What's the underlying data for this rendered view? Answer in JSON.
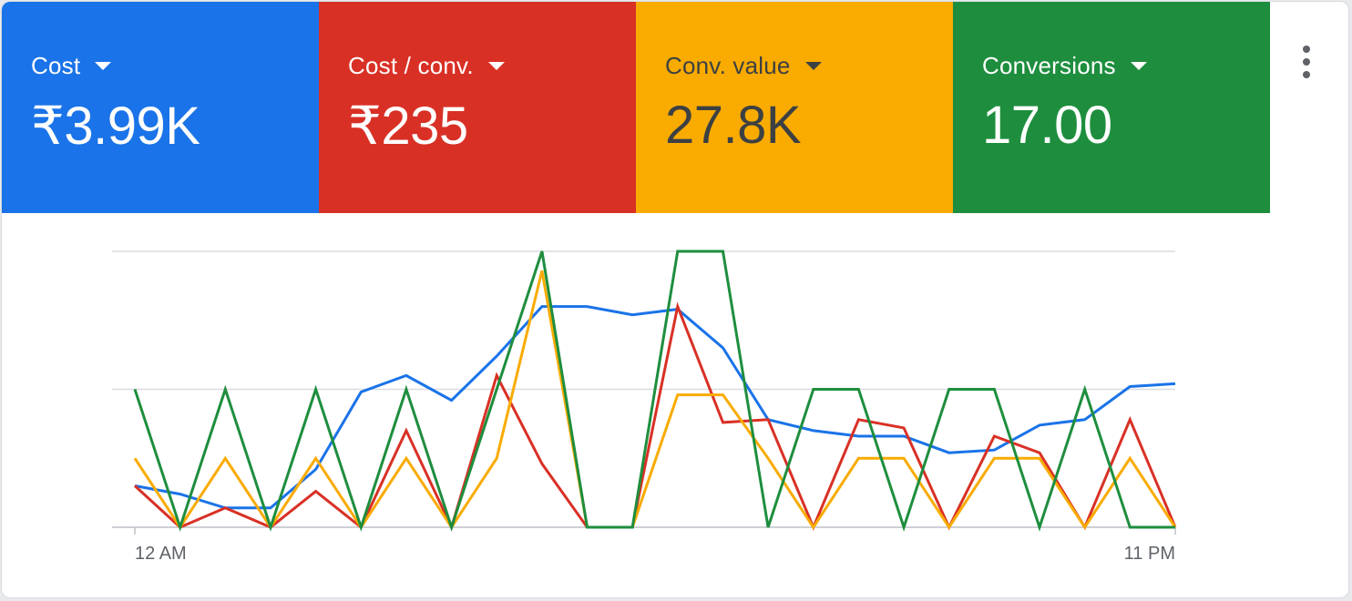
{
  "metrics": [
    {
      "name": "Cost",
      "value": "₹3.99K",
      "color": "#1a73e8"
    },
    {
      "name": "Cost / conv.",
      "value": "₹235",
      "color": "#d93025"
    },
    {
      "name": "Conv. value",
      "value": "27.8K",
      "color": "#f9ab00"
    },
    {
      "name": "Conversions",
      "value": "17.00",
      "color": "#1e8e3e"
    }
  ],
  "more_icon": "more-vert-icon",
  "chart_data": {
    "type": "line",
    "x_labels": [
      "12 AM",
      "11 PM"
    ],
    "x": [
      0,
      1,
      2,
      3,
      4,
      5,
      6,
      7,
      8,
      9,
      10,
      11,
      12,
      13,
      14,
      15,
      16,
      17,
      18,
      19,
      20,
      21,
      22,
      23
    ],
    "grid": true,
    "series": [
      {
        "key": "cost",
        "color": "#1a73e8",
        "values": [
          0.15,
          0.12,
          0.07,
          0.07,
          0.21,
          0.49,
          0.55,
          0.46,
          0.62,
          0.8,
          0.8,
          0.77,
          0.79,
          0.65,
          0.39,
          0.35,
          0.33,
          0.33,
          0.27,
          0.28,
          0.37,
          0.39,
          0.51,
          0.52
        ]
      },
      {
        "key": "cost_per_conv",
        "color": "#d93025",
        "values": [
          0.15,
          0.0,
          0.07,
          0.0,
          0.13,
          0.0,
          0.35,
          0.0,
          0.55,
          0.23,
          0.0,
          0.0,
          0.8,
          0.38,
          0.39,
          0.0,
          0.39,
          0.36,
          0.0,
          0.33,
          0.27,
          0.0,
          0.39,
          0.0
        ]
      },
      {
        "key": "conv_value",
        "color": "#f9ab00",
        "values": [
          0.25,
          0.0,
          0.25,
          0.0,
          0.25,
          0.0,
          0.25,
          0.0,
          0.25,
          0.93,
          0.0,
          0.0,
          0.48,
          0.48,
          0.25,
          0.0,
          0.25,
          0.25,
          0.0,
          0.25,
          0.25,
          0.0,
          0.25,
          0.0
        ]
      },
      {
        "key": "conversions",
        "color": "#1e8e3e",
        "values": [
          0.5,
          0.0,
          0.5,
          0.0,
          0.5,
          0.0,
          0.5,
          0.0,
          0.5,
          1.0,
          0.0,
          0.0,
          1.0,
          1.0,
          0.0,
          0.5,
          0.5,
          0.0,
          0.5,
          0.5,
          0.0,
          0.5,
          0.0,
          0.0
        ]
      }
    ]
  }
}
